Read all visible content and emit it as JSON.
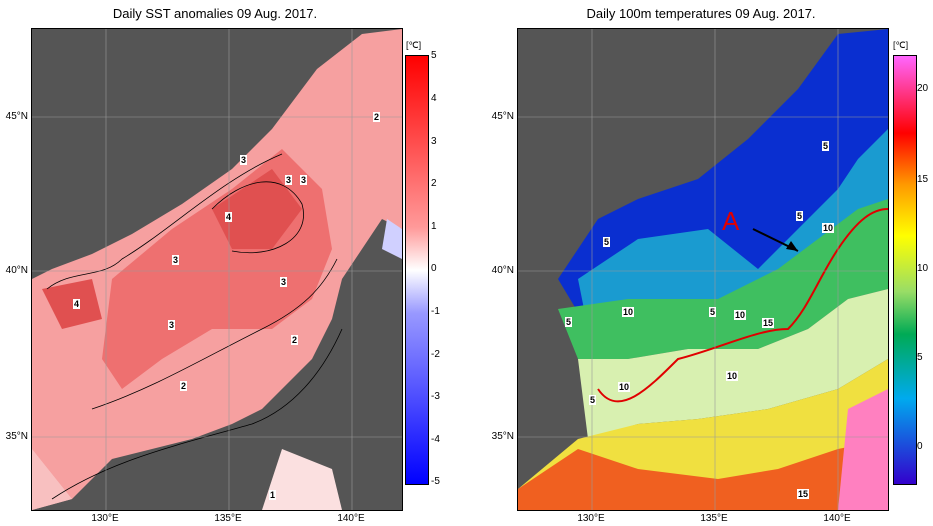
{
  "left_panel": {
    "title": "Daily SST anomalies 09 Aug. 2017.",
    "colorbar_unit": "[℃]",
    "colorbar_ticks": [
      "5",
      "4",
      "3",
      "2",
      "1",
      "0",
      "-1",
      "-2",
      "-3",
      "-4",
      "-5"
    ],
    "contour_labels": [
      "3",
      "3",
      "3",
      "4",
      "3",
      "3",
      "4",
      "3",
      "2",
      "2",
      "2",
      "1"
    ]
  },
  "right_panel": {
    "title": "Daily 100m temperatures 09 Aug. 2017.",
    "colorbar_unit": "[℃]",
    "colorbar_ticks": [
      "20",
      "15",
      "10",
      "5",
      "0"
    ],
    "contour_labels": [
      "5",
      "5",
      "5",
      "10",
      "5",
      "10",
      "10",
      "15",
      "5",
      "10",
      "10",
      "5",
      "15"
    ],
    "annotation": "A"
  },
  "axes": {
    "lat_labels": [
      "45°N",
      "40°N",
      "35°N"
    ],
    "lon_labels": [
      "130°E",
      "135°E",
      "140°E"
    ]
  },
  "colors": {
    "land": "#555555",
    "anomaly_scale": [
      "#0000ff",
      "#ffffff",
      "#ff0000"
    ],
    "temperature_scale": [
      "#3300cc",
      "#00aa55",
      "#ffff00",
      "#ff0000",
      "#ff66ff"
    ]
  }
}
